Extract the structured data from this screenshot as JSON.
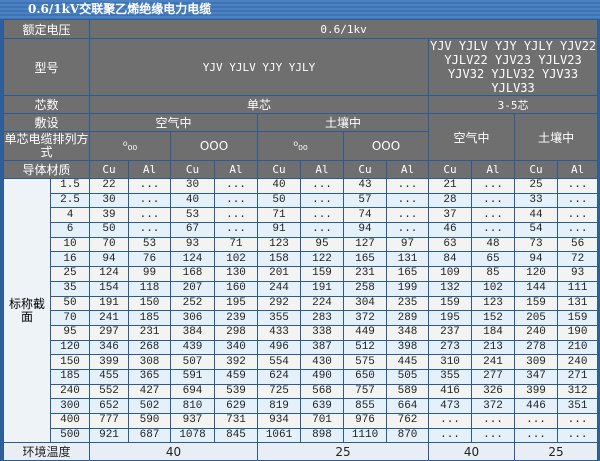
{
  "title": "0.6/1kV交联聚乙烯绝缘电力电缆",
  "header": {
    "rated_voltage_label": "额定电压",
    "rated_voltage": "0.6/1kv",
    "model_label": "型号",
    "model_single": "YJV YJLV YJY YJLY",
    "model_multi": "YJV YJLV YJY YJLY YJV22 YJLV22 YJV23 YJLV23 YJV32 YJLV32 YJV33 YJLV33",
    "cores_label": "芯数",
    "cores_single": "单芯",
    "cores_multi": "3-5芯",
    "laying_label": "敷设",
    "air": "空气中",
    "soil": "土壤中",
    "arrangement_label": "单芯电缆排列方式",
    "trefoil": "ꝏ",
    "flat": "OOO",
    "conductor_label": "导体材质",
    "cu": "Cu",
    "al": "Al"
  },
  "section_label": "标称截面",
  "rows": [
    [
      "1.5",
      "22",
      "...",
      "30",
      "...",
      "40",
      "...",
      "43",
      "...",
      "21",
      "...",
      "25",
      "..."
    ],
    [
      "2.5",
      "30",
      "...",
      "40",
      "...",
      "50",
      "...",
      "57",
      "...",
      "28",
      "...",
      "33",
      "..."
    ],
    [
      "4",
      "39",
      "...",
      "53",
      "...",
      "71",
      "...",
      "74",
      "...",
      "37",
      "...",
      "44",
      "..."
    ],
    [
      "6",
      "50",
      "...",
      "67",
      "...",
      "91",
      "...",
      "94",
      "...",
      "46",
      "...",
      "54",
      "..."
    ],
    [
      "10",
      "70",
      "53",
      "93",
      "71",
      "123",
      "95",
      "127",
      "97",
      "63",
      "48",
      "73",
      "56"
    ],
    [
      "16",
      "94",
      "76",
      "124",
      "102",
      "158",
      "122",
      "165",
      "131",
      "84",
      "65",
      "94",
      "72"
    ],
    [
      "25",
      "124",
      "99",
      "168",
      "130",
      "201",
      "159",
      "231",
      "165",
      "109",
      "85",
      "120",
      "93"
    ],
    [
      "35",
      "154",
      "118",
      "207",
      "160",
      "244",
      "191",
      "258",
      "199",
      "132",
      "102",
      "144",
      "111"
    ],
    [
      "50",
      "191",
      "150",
      "252",
      "195",
      "292",
      "224",
      "304",
      "235",
      "159",
      "123",
      "159",
      "131"
    ],
    [
      "70",
      "241",
      "185",
      "306",
      "239",
      "355",
      "283",
      "372",
      "289",
      "195",
      "152",
      "205",
      "159"
    ],
    [
      "95",
      "297",
      "231",
      "384",
      "298",
      "433",
      "338",
      "449",
      "348",
      "237",
      "184",
      "240",
      "190"
    ],
    [
      "120",
      "346",
      "268",
      "439",
      "340",
      "496",
      "387",
      "512",
      "398",
      "273",
      "213",
      "278",
      "210"
    ],
    [
      "150",
      "399",
      "308",
      "507",
      "392",
      "554",
      "430",
      "575",
      "445",
      "310",
      "241",
      "309",
      "240"
    ],
    [
      "185",
      "455",
      "365",
      "591",
      "459",
      "624",
      "490",
      "650",
      "505",
      "355",
      "277",
      "347",
      "271"
    ],
    [
      "240",
      "552",
      "427",
      "694",
      "539",
      "725",
      "568",
      "757",
      "589",
      "416",
      "326",
      "399",
      "312"
    ],
    [
      "300",
      "652",
      "502",
      "810",
      "629",
      "819",
      "639",
      "855",
      "664",
      "473",
      "372",
      "446",
      "351"
    ],
    [
      "400",
      "777",
      "590",
      "937",
      "731",
      "934",
      "701",
      "976",
      "762",
      "...",
      "...",
      "...",
      "..."
    ],
    [
      "500",
      "921",
      "687",
      "1078",
      "845",
      "1061",
      "898",
      "1110",
      "870",
      "...",
      "...",
      "...",
      "..."
    ]
  ],
  "footer": {
    "label": "环境温度",
    "values": [
      "40",
      "25",
      "40",
      "25"
    ]
  }
}
